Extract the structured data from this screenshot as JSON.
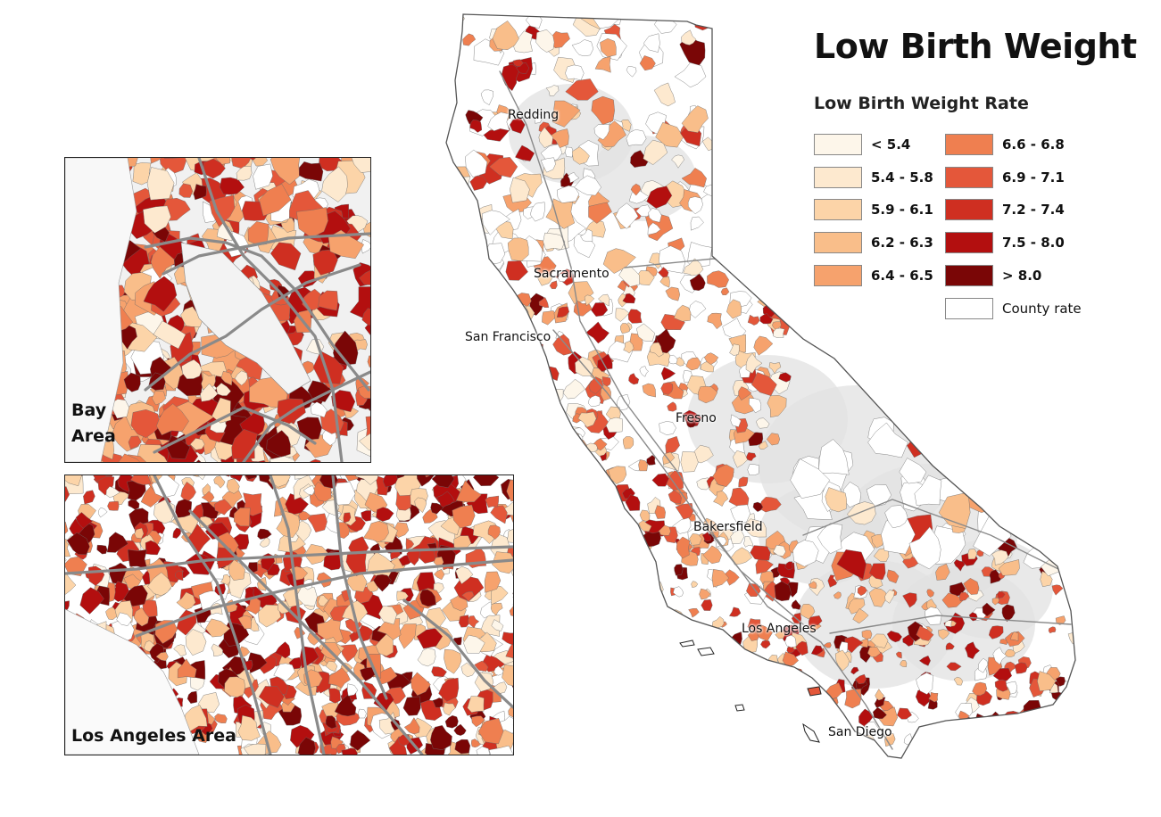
{
  "title": "Low Birth Weight",
  "legend": {
    "title": "Low Birth Weight Rate",
    "items": [
      {
        "label": "< 5.4",
        "color": "#fdf6ea"
      },
      {
        "label": "5.4 - 5.8",
        "color": "#fde9cf"
      },
      {
        "label": "5.9 - 6.1",
        "color": "#fcd4a8"
      },
      {
        "label": "6.2 - 6.3",
        "color": "#f9be8a"
      },
      {
        "label": "6.4 - 6.5",
        "color": "#f6a26d"
      },
      {
        "label": "6.6 - 6.8",
        "color": "#ef7f50"
      },
      {
        "label": "6.9 - 7.1",
        "color": "#e4573a"
      },
      {
        "label": "7.2 - 7.4",
        "color": "#cf2f21"
      },
      {
        "label": "7.5 - 8.0",
        "color": "#b30f0f"
      },
      {
        "label": "> 8.0",
        "color": "#7a0606"
      },
      {
        "label": "County rate",
        "color": "#ffffff"
      }
    ]
  },
  "cities": [
    "Redding",
    "Sacramento",
    "San Francisco",
    "Fresno",
    "Bakersfield",
    "Los Angeles",
    "San Diego"
  ],
  "insets": {
    "bay": "Bay Area",
    "la": "Los Angeles Area"
  },
  "colors": {
    "no_data": "#ffffff",
    "terrain": "#e2e2e2",
    "roads": "#8a8a8a",
    "outline": "#555555"
  }
}
